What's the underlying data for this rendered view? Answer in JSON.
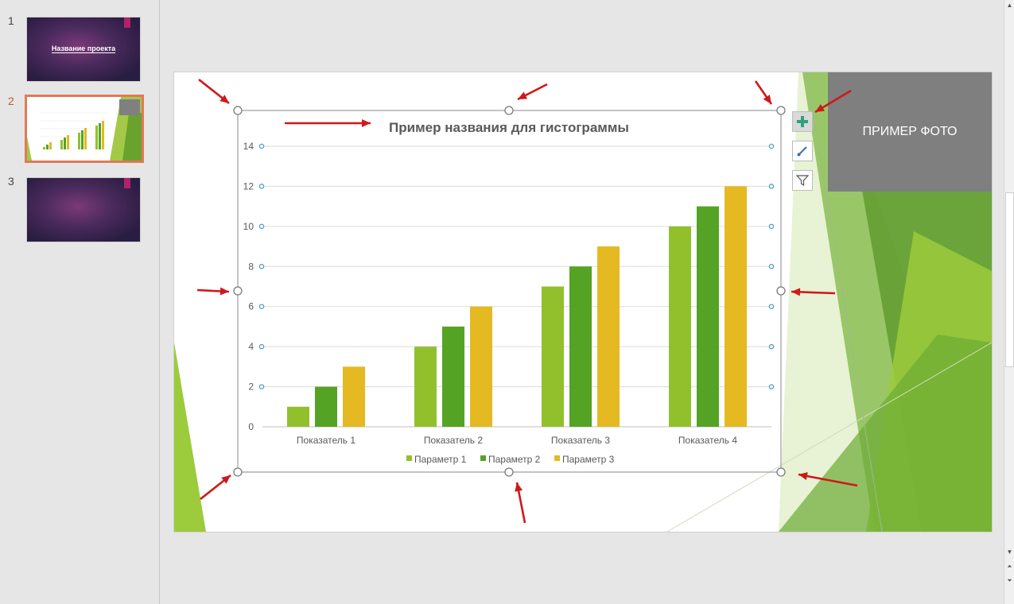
{
  "slides_panel": {
    "thumbs": [
      {
        "number": "1",
        "title": "Название проекта"
      },
      {
        "number": "2",
        "title": ""
      },
      {
        "number": "3",
        "title": ""
      }
    ]
  },
  "slide": {
    "photo_label": "ПРИМЕР ФОТО"
  },
  "chart_tools": {
    "plus_icon": "plus-icon",
    "brush_icon": "brush-icon",
    "filter_icon": "filter-icon"
  },
  "colors": {
    "series1": "#92c02d",
    "series2": "#55a325",
    "series3": "#e4b921",
    "accent_thumb": "#e07a57",
    "arrow": "#d0181b"
  },
  "chart_data": {
    "type": "bar",
    "title": "Пример названия для гистограммы",
    "categories": [
      "Показатель 1",
      "Показатель 2",
      "Показатель 3",
      "Показатель 4"
    ],
    "series": [
      {
        "name": "Параметр 1",
        "values": [
          1,
          4,
          7,
          10
        ]
      },
      {
        "name": "Параметр 2",
        "values": [
          2,
          5,
          8,
          11
        ]
      },
      {
        "name": "Параметр 3",
        "values": [
          3,
          6,
          9,
          12
        ]
      }
    ],
    "ylim": [
      0,
      14
    ],
    "yticks": [
      "0",
      "2",
      "4",
      "6",
      "8",
      "10",
      "12",
      "14"
    ],
    "grid": true,
    "legend": "bottom"
  }
}
